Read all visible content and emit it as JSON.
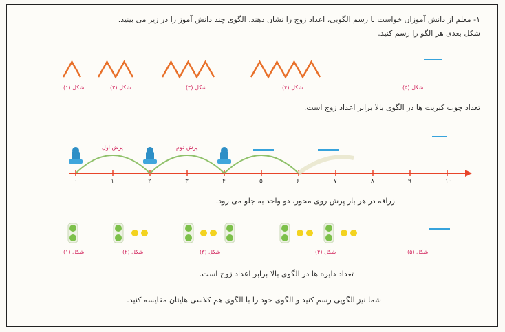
{
  "question": {
    "line1": "۱- معلم از دانش آموزان خواست با رسم الگویی، اعداد زوج را نشان دهند. الگوی چند دانش آموز را در زیر می بینید.",
    "line2": "شکل بعدی هر الگو را رسم کنید."
  },
  "pattern1": {
    "labels": [
      "شکل (۱)",
      "شکل (۲)",
      "شکل (۳)",
      "شکل (۴)",
      "شکل (۵)"
    ],
    "zigzag_counts": [
      2,
      4,
      6,
      8
    ],
    "stroke_color": "#e8702a",
    "statement": "تعداد چوب کبریت ها در الگوی بالا برابر اعداد زوج است."
  },
  "numberline": {
    "ticks": [
      "۰",
      "۱",
      "۲",
      "۳",
      "۴",
      "۵",
      "۶",
      "۷",
      "۸",
      "۹",
      "۱۰"
    ],
    "jump_labels": [
      "پرش اول",
      "پرش دوم"
    ],
    "jump_positions": [
      0,
      2,
      4,
      6
    ],
    "arc_color": "#8fc16a",
    "axis_color": "#e8452a",
    "statement": "زرافه در هر بار پرش روی محور، دو واحد به جلو می رود."
  },
  "pattern2": {
    "labels": [
      "شکل (۱)",
      "شکل (۲)",
      "شکل (۳)",
      "شکل (۴)",
      "شکل (۵)"
    ],
    "green_dot_color": "#7cc04a",
    "yellow_dot_color": "#f3d320",
    "statement": "تعداد دایره ها در الگوی بالا برابر اعداد زوج است.",
    "instruction": "شما نیز الگویی رسم کنید و الگوی خود را با الگوی هم کلاسی هایتان مقایسه کنید."
  },
  "accent_color": "#37a3dc"
}
